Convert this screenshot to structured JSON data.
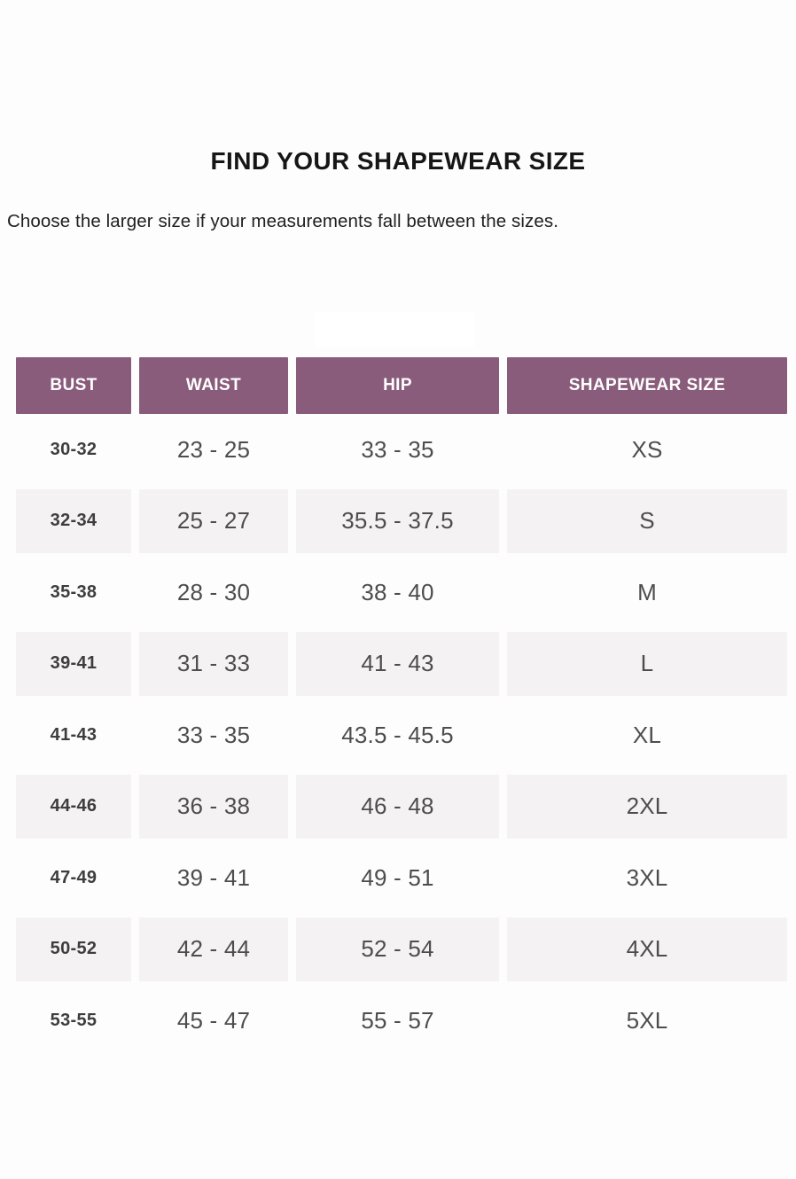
{
  "page": {
    "title": "FIND YOUR SHAPEWEAR SIZE",
    "subtitle": "Choose the larger size if your measurements fall between the sizes."
  },
  "table": {
    "columns": [
      "BUST",
      "WAIST",
      "HIP",
      "SHAPEWEAR SIZE"
    ],
    "rows": [
      {
        "bust": "30-32",
        "waist": "23 - 25",
        "hip": "33 - 35",
        "size": "XS"
      },
      {
        "bust": "32-34",
        "waist": "25 - 27",
        "hip": "35.5 - 37.5",
        "size": "S"
      },
      {
        "bust": "35-38",
        "waist": "28 - 30",
        "hip": "38 - 40",
        "size": "M"
      },
      {
        "bust": "39-41",
        "waist": "31 - 33",
        "hip": "41 - 43",
        "size": "L"
      },
      {
        "bust": "41-43",
        "waist": "33 - 35",
        "hip": "43.5 - 45.5",
        "size": "XL"
      },
      {
        "bust": "44-46",
        "waist": "36 - 38",
        "hip": "46 - 48",
        "size": "2XL"
      },
      {
        "bust": "47-49",
        "waist": "39 - 41",
        "hip": "49 - 51",
        "size": "3XL"
      },
      {
        "bust": "50-52",
        "waist": "42 - 44",
        "hip": "52 - 54",
        "size": "4XL"
      },
      {
        "bust": "53-55",
        "waist": "45 - 47",
        "hip": "55 - 57",
        "size": "5XL"
      }
    ]
  },
  "colors": {
    "header_bg": "#8a5c7b",
    "header_text": "#ffffff",
    "stripe_bg": "#f5f2f4",
    "bust_text": "#3d3d3d",
    "value_text": "#4d4d4d"
  }
}
